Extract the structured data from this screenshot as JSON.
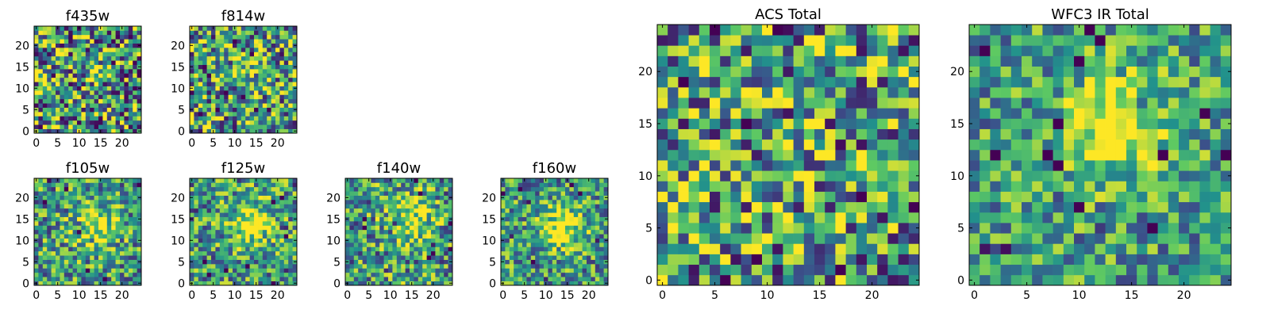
{
  "chart_data": [
    {
      "type": "heatmap",
      "title": "f435w",
      "grid_size": 25,
      "xlim": [
        -0.5,
        24.5
      ],
      "ylim": [
        -0.5,
        24.5
      ],
      "xticks": [
        0,
        5,
        10,
        15,
        20
      ],
      "yticks": [
        0,
        5,
        10,
        15,
        20
      ],
      "bright_center": [
        14,
        14
      ],
      "signal_strength": 0.05,
      "noise_amplitude": 0.55,
      "seed": 435
    },
    {
      "type": "heatmap",
      "title": "f814w",
      "grid_size": 25,
      "xlim": [
        -0.5,
        24.5
      ],
      "ylim": [
        -0.5,
        24.5
      ],
      "xticks": [
        0,
        5,
        10,
        15,
        20
      ],
      "yticks": [
        0,
        5,
        10,
        15,
        20
      ],
      "bright_center": [
        14,
        14
      ],
      "signal_strength": 0.18,
      "noise_amplitude": 0.5,
      "seed": 814
    },
    {
      "type": "heatmap",
      "title": "f105w",
      "grid_size": 25,
      "xlim": [
        -0.5,
        24.5
      ],
      "ylim": [
        -0.5,
        24.5
      ],
      "xticks": [
        0,
        5,
        10,
        15,
        20
      ],
      "yticks": [
        0,
        5,
        10,
        15,
        20
      ],
      "bright_center": [
        14,
        13
      ],
      "signal_strength": 0.38,
      "noise_amplitude": 0.4,
      "seed": 105
    },
    {
      "type": "heatmap",
      "title": "f125w",
      "grid_size": 25,
      "xlim": [
        -0.5,
        24.5
      ],
      "ylim": [
        -0.5,
        24.5
      ],
      "xticks": [
        0,
        5,
        10,
        15,
        20
      ],
      "yticks": [
        0,
        5,
        10,
        15,
        20
      ],
      "bright_center": [
        14,
        14
      ],
      "signal_strength": 0.42,
      "noise_amplitude": 0.4,
      "seed": 125
    },
    {
      "type": "heatmap",
      "title": "f140w",
      "grid_size": 25,
      "xlim": [
        -0.5,
        24.5
      ],
      "ylim": [
        -0.5,
        24.5
      ],
      "xticks": [
        0,
        5,
        10,
        15,
        20
      ],
      "yticks": [
        0,
        5,
        10,
        15,
        20
      ],
      "bright_center": [
        15,
        15
      ],
      "signal_strength": 0.4,
      "noise_amplitude": 0.42,
      "seed": 140
    },
    {
      "type": "heatmap",
      "title": "f160w",
      "grid_size": 25,
      "xlim": [
        -0.5,
        24.5
      ],
      "ylim": [
        -0.5,
        24.5
      ],
      "xticks": [
        0,
        5,
        10,
        15,
        20
      ],
      "yticks": [
        0,
        5,
        10,
        15,
        20
      ],
      "bright_center": [
        14,
        13
      ],
      "signal_strength": 0.45,
      "noise_amplitude": 0.38,
      "seed": 160
    },
    {
      "type": "heatmap",
      "title": "ACS Total",
      "grid_size": 25,
      "xlim": [
        -0.5,
        24.5
      ],
      "ylim": [
        -0.5,
        24.5
      ],
      "xticks": [
        0,
        5,
        10,
        15,
        20
      ],
      "yticks": [
        0,
        5,
        10,
        15,
        20
      ],
      "bright_center": [
        14,
        14
      ],
      "signal_strength": 0.1,
      "noise_amplitude": 0.5,
      "seed": 999
    },
    {
      "type": "heatmap",
      "title": "WFC3 IR Total",
      "grid_size": 25,
      "xlim": [
        -0.5,
        24.5
      ],
      "ylim": [
        -0.5,
        24.5
      ],
      "xticks": [
        0,
        5,
        10,
        15,
        20
      ],
      "yticks": [
        0,
        5,
        10,
        15,
        20
      ],
      "bright_center": [
        14,
        15
      ],
      "signal_strength": 0.5,
      "noise_amplitude": 0.35,
      "seed": 777
    }
  ],
  "colormap": {
    "name": "viridis",
    "stops": [
      "#440154",
      "#3b528b",
      "#21918c",
      "#5ec962",
      "#fde725"
    ]
  }
}
